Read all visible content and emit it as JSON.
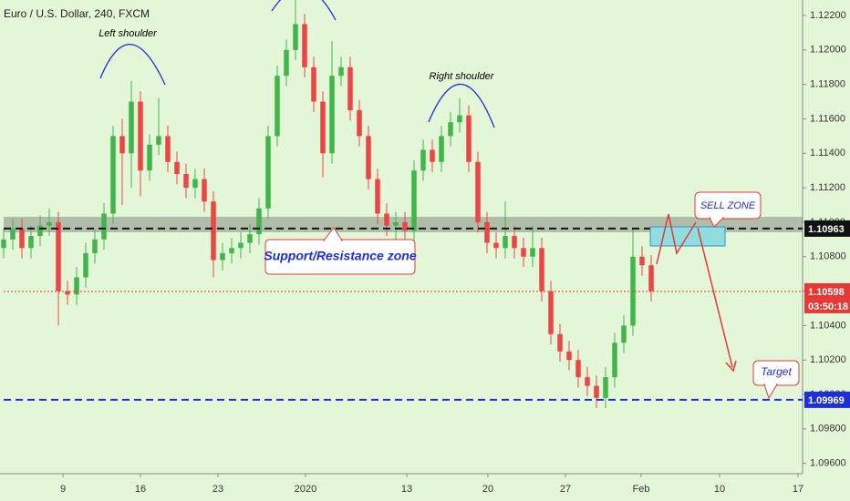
{
  "chart_data": {
    "type": "candlestick",
    "title": "Euro / U.S. Dollar, 240, FXCM",
    "up_color": "#3fb54a",
    "down_color": "#ef4444",
    "open": [
      1.1085,
      1.109,
      1.1096,
      1.1085,
      1.1092,
      1.1098,
      1.11,
      1.106,
      1.1058,
      1.1068,
      1.1082,
      1.109,
      1.1105,
      1.115,
      1.114,
      1.117,
      1.113,
      1.1145,
      1.115,
      1.1135,
      1.1128,
      1.112,
      1.1125,
      1.1112,
      1.1078,
      1.1082,
      1.1085,
      1.1088,
      1.1093,
      1.1108,
      1.115,
      1.1185,
      1.12,
      1.1215,
      1.119,
      1.117,
      1.114,
      1.1185,
      1.119,
      1.1165,
      1.115,
      1.1125,
      1.1105,
      1.1098,
      1.11,
      1.1095,
      1.113,
      1.1142,
      1.1135,
      1.115,
      1.1158,
      1.1162,
      1.1135,
      1.11,
      1.1088,
      1.1085,
      1.1092,
      1.1085,
      1.108,
      1.1085,
      1.106,
      1.1035,
      1.1025,
      1.102,
      1.101,
      1.1005,
      1.0998,
      1.101,
      1.103,
      1.104,
      1.108,
      1.1075
    ],
    "high": [
      1.1096,
      1.1102,
      1.1102,
      1.1098,
      1.1104,
      1.1108,
      1.1106,
      1.1066,
      1.1074,
      1.1088,
      1.1096,
      1.1111,
      1.1156,
      1.116,
      1.1182,
      1.1176,
      1.1151,
      1.1172,
      1.1156,
      1.1141,
      1.1134,
      1.1131,
      1.1131,
      1.1118,
      1.1088,
      1.1091,
      1.1094,
      1.1099,
      1.1114,
      1.1156,
      1.1191,
      1.1206,
      1.1232,
      1.1221,
      1.1196,
      1.1176,
      1.1205,
      1.1196,
      1.1196,
      1.1171,
      1.1156,
      1.1131,
      1.1111,
      1.1106,
      1.1106,
      1.1136,
      1.1148,
      1.1148,
      1.1156,
      1.1164,
      1.1172,
      1.1168,
      1.1141,
      1.1106,
      1.1094,
      1.1112,
      1.1098,
      1.1091,
      1.1098,
      1.1091,
      1.1066,
      1.1041,
      1.1031,
      1.1026,
      1.1016,
      1.1011,
      1.1016,
      1.1036,
      1.1046,
      1.1096,
      1.1086,
      1.1081
    ],
    "low": [
      1.1079,
      1.1084,
      1.1079,
      1.1079,
      1.1086,
      1.1092,
      1.104,
      1.1052,
      1.1052,
      1.1062,
      1.1076,
      1.1084,
      1.1099,
      1.111,
      1.112,
      1.1115,
      1.1124,
      1.1139,
      1.1129,
      1.1122,
      1.1114,
      1.1114,
      1.1106,
      1.1068,
      1.1072,
      1.1076,
      1.1079,
      1.1082,
      1.1087,
      1.1102,
      1.1144,
      1.1179,
      1.1194,
      1.1184,
      1.1164,
      1.1126,
      1.1134,
      1.1179,
      1.1159,
      1.1144,
      1.1119,
      1.1099,
      1.1092,
      1.109,
      1.1086,
      1.1089,
      1.1124,
      1.1129,
      1.1129,
      1.1144,
      1.1152,
      1.1129,
      1.1094,
      1.1082,
      1.1079,
      1.1079,
      1.1079,
      1.1074,
      1.1074,
      1.1054,
      1.1029,
      1.1019,
      1.1014,
      1.1004,
      1.0999,
      1.0992,
      1.0992,
      1.1004,
      1.1024,
      1.1034,
      1.1069,
      1.1054
    ],
    "close": [
      1.109,
      1.1096,
      1.1085,
      1.1092,
      1.1098,
      1.11,
      1.106,
      1.1058,
      1.1068,
      1.1082,
      1.109,
      1.1105,
      1.115,
      1.114,
      1.117,
      1.113,
      1.1145,
      1.115,
      1.1135,
      1.1128,
      1.112,
      1.1125,
      1.1112,
      1.1078,
      1.1082,
      1.1085,
      1.1088,
      1.1093,
      1.1108,
      1.115,
      1.1185,
      1.12,
      1.1215,
      1.119,
      1.117,
      1.114,
      1.1185,
      1.119,
      1.1165,
      1.115,
      1.1125,
      1.1105,
      1.1098,
      1.11,
      1.1095,
      1.113,
      1.1142,
      1.1135,
      1.115,
      1.1158,
      1.1162,
      1.1135,
      1.11,
      1.1088,
      1.1085,
      1.1092,
      1.1085,
      1.108,
      1.1085,
      1.106,
      1.1035,
      1.1025,
      1.102,
      1.101,
      1.1005,
      1.0998,
      1.101,
      1.103,
      1.104,
      1.108,
      1.1075,
      1.106
    ],
    "ylim": [
      1.0954,
      1.1229
    ],
    "yticks": [
      {
        "value": 1.096,
        "label": "1.09600"
      },
      {
        "value": 1.098,
        "label": "1.09800"
      },
      {
        "value": 1.1,
        "label": "1.10000"
      },
      {
        "value": 1.102,
        "label": "1.10200"
      },
      {
        "value": 1.104,
        "label": "1.10400"
      },
      {
        "value": 1.106,
        "label": "1.10600"
      },
      {
        "value": 1.108,
        "label": "1.10800"
      },
      {
        "value": 1.11,
        "label": "1.11000"
      },
      {
        "value": 1.112,
        "label": "1.11200"
      },
      {
        "value": 1.114,
        "label": "1.11400"
      },
      {
        "value": 1.116,
        "label": "1.11600"
      },
      {
        "value": 1.118,
        "label": "1.11800"
      },
      {
        "value": 1.12,
        "label": "1.12000"
      },
      {
        "value": 1.122,
        "label": "1.12200"
      }
    ],
    "xlim": [
      -0.4,
      87.6
    ],
    "xticks": [
      {
        "value": 6.5,
        "label": "9"
      },
      {
        "value": 15,
        "label": "16"
      },
      {
        "value": 23.5,
        "label": "23"
      },
      {
        "value": 33.1,
        "label": "2020"
      },
      {
        "value": 44.2,
        "label": "13"
      },
      {
        "value": 53.1,
        "label": "20"
      },
      {
        "value": 61.6,
        "label": "27"
      },
      {
        "value": 69.9,
        "label": "Feb"
      },
      {
        "value": 78.5,
        "label": "10"
      },
      {
        "value": 87.1,
        "label": "17"
      }
    ],
    "levels": [
      {
        "value": 1.10963,
        "color": "#111111",
        "style": "dashed"
      },
      {
        "value": 1.10598,
        "color": "#e53935",
        "style": "dotted"
      },
      {
        "value": 1.09969,
        "color": "#1e2fd6",
        "style": "dashed"
      }
    ],
    "countdown": "03:50:18",
    "annotations": [
      "Left shoulder",
      "Right shoulder",
      "Support/Resistance zone",
      "SELL ZONE",
      "Target"
    ]
  }
}
